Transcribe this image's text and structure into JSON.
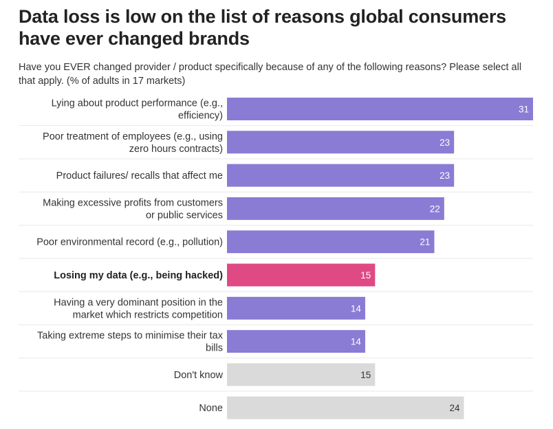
{
  "title": "Data loss is low on the list of reasons global consumers have ever changed brands",
  "subtitle": "Have you EVER changed provider / product specifically because of any of the following reasons? Please select all that apply. (% of adults in 17 markets)",
  "colors": {
    "default_bar": "#8a7bd4",
    "highlight_bar": "#df4a84",
    "neutral_bar": "#dadada",
    "row_separator": "#e8e8e8"
  },
  "chart_data": {
    "type": "bar",
    "orientation": "horizontal",
    "categories": [
      [
        "Lying about product performance (e.g.,",
        "efficiency)"
      ],
      [
        "Poor treatment of employees (e.g., using",
        "zero hours contracts)"
      ],
      [
        "Product failures/ recalls that affect me"
      ],
      [
        "Making excessive profits from customers",
        "or public services"
      ],
      [
        "Poor environmental record (e.g., pollution)"
      ],
      [
        "Losing my data (e.g., being hacked)"
      ],
      [
        "Having a very dominant position in the",
        "market which restricts competition"
      ],
      [
        "Taking extreme steps to minimise their tax",
        "bills"
      ],
      [
        "Don't know"
      ],
      [
        "None"
      ]
    ],
    "values": [
      31,
      23,
      23,
      22,
      21,
      15,
      14,
      14,
      15,
      24
    ],
    "bar_color_roles": [
      "default",
      "default",
      "default",
      "default",
      "default",
      "highlight",
      "default",
      "default",
      "neutral",
      "neutral"
    ],
    "bold_categories": [
      5
    ],
    "xlim": [
      0,
      31
    ],
    "grid": false,
    "legend": "none"
  }
}
